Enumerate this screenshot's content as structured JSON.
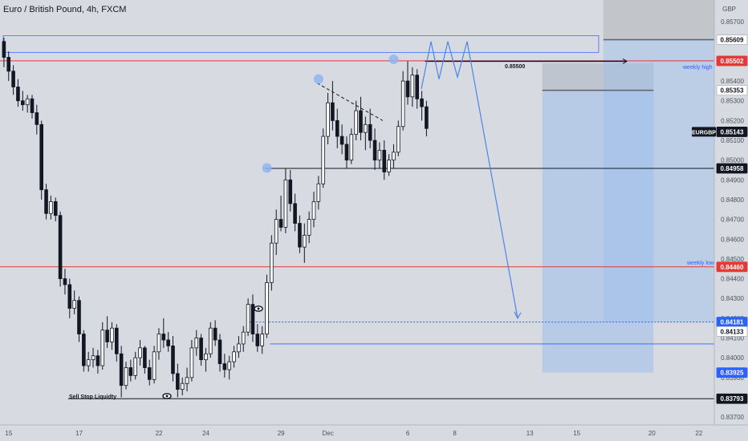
{
  "symbol_title": "Euro / British Pound, 4h, FXCM",
  "colors": {
    "background": "#d7dae1",
    "bull_candle": "#ffffff",
    "bear_candle": "#131722",
    "level_red": "#e53935",
    "level_black": "#131722",
    "level_blue": "#2962ff",
    "projection_line": "#4a86e8",
    "zone_blue": "#9cbfec",
    "zone_grey": "#c0c3c9",
    "marker": "#90b4ee"
  },
  "price_axis": {
    "currency": "GBP",
    "ticks": [
      "0.85700",
      "0.85600",
      "0.85400",
      "0.85300",
      "0.85200",
      "0.85100",
      "0.85000",
      "0.84900",
      "0.84800",
      "0.84700",
      "0.84600",
      "0.84500",
      "0.84400",
      "0.84300",
      "0.84200",
      "0.84100",
      "0.84000",
      "0.83900",
      "0.83700"
    ],
    "tick_values": [
      0.857,
      0.856,
      0.854,
      0.853,
      0.852,
      0.851,
      0.85,
      0.849,
      0.848,
      0.847,
      0.846,
      0.845,
      0.844,
      0.843,
      0.842,
      0.841,
      0.84,
      0.839,
      0.837
    ]
  },
  "price_badges": [
    {
      "label": "0.85609",
      "value": 0.85609,
      "style": "grey"
    },
    {
      "label": "0.85502",
      "value": 0.85502,
      "style": "red"
    },
    {
      "label": "0.85353",
      "value": 0.85353,
      "style": "grey"
    },
    {
      "label": "0.85143",
      "value": 0.85143,
      "style": "black",
      "prefix": "EURGBP"
    },
    {
      "label": "0.84958",
      "value": 0.84958,
      "style": "black"
    },
    {
      "label": "0.84460",
      "value": 0.8446,
      "style": "red"
    },
    {
      "label": "0.84181",
      "value": 0.84181,
      "style": "blue"
    },
    {
      "label": "0.84133",
      "value": 0.84133,
      "style": "grey"
    },
    {
      "label": "0.83925",
      "value": 0.83925,
      "style": "blue"
    },
    {
      "label": "0.83793",
      "value": 0.83793,
      "style": "black"
    }
  ],
  "time_axis": {
    "labels": [
      "15",
      "17",
      "22",
      "24",
      "29",
      "Dec",
      "6",
      "8",
      "13",
      "15",
      "20",
      "22"
    ],
    "label_slots": [
      1,
      16,
      33,
      43,
      59,
      69,
      86,
      96,
      112,
      122,
      138,
      148
    ]
  },
  "annotations": {
    "weekly_high": "weekly high",
    "weekly_low": "weekly low",
    "sell_stop": "Sell Stop Liquidty",
    "target_price": "0.85500",
    "symbol_tag": "EURGBP"
  },
  "chart_data": {
    "type": "candlestick",
    "timeframe": "4h",
    "symbol": "EURGBP",
    "title": "Euro / British Pound, 4h, FXCM",
    "ylim": [
      0.8366,
      0.8581
    ],
    "levels": [
      {
        "name": "weekly high",
        "value": 0.85502
      },
      {
        "name": "weekly low",
        "value": 0.8446
      },
      {
        "name": "level",
        "value": 0.84958
      },
      {
        "name": "sell stop liquidity",
        "value": 0.83793
      },
      {
        "name": "target",
        "value": 0.855
      }
    ],
    "ohlc": [
      [
        0.856,
        0.8562,
        0.8547,
        0.8552
      ],
      [
        0.8552,
        0.8555,
        0.854,
        0.8545
      ],
      [
        0.8545,
        0.8548,
        0.8533,
        0.8537
      ],
      [
        0.8537,
        0.8541,
        0.8527,
        0.853
      ],
      [
        0.853,
        0.8535,
        0.8525,
        0.8528
      ],
      [
        0.8528,
        0.8533,
        0.8524,
        0.8531
      ],
      [
        0.8531,
        0.8533,
        0.8521,
        0.8524
      ],
      [
        0.8524,
        0.8528,
        0.8513,
        0.8518
      ],
      [
        0.8518,
        0.852,
        0.848,
        0.8485
      ],
      [
        0.8485,
        0.8488,
        0.847,
        0.8473
      ],
      [
        0.8473,
        0.8482,
        0.847,
        0.8479
      ],
      [
        0.8479,
        0.8481,
        0.8469,
        0.8472
      ],
      [
        0.8472,
        0.8474,
        0.8436,
        0.844
      ],
      [
        0.844,
        0.8445,
        0.8432,
        0.8437
      ],
      [
        0.8437,
        0.844,
        0.842,
        0.8425
      ],
      [
        0.8425,
        0.8434,
        0.8422,
        0.8429
      ],
      [
        0.8429,
        0.8431,
        0.8408,
        0.8412
      ],
      [
        0.8412,
        0.8414,
        0.8393,
        0.8396
      ],
      [
        0.8396,
        0.8403,
        0.8393,
        0.8399
      ],
      [
        0.8399,
        0.8405,
        0.8395,
        0.8401
      ],
      [
        0.8401,
        0.8404,
        0.8392,
        0.8396
      ],
      [
        0.8396,
        0.8418,
        0.8394,
        0.8414
      ],
      [
        0.8414,
        0.8421,
        0.8405,
        0.8408
      ],
      [
        0.8408,
        0.8418,
        0.8404,
        0.8415
      ],
      [
        0.8415,
        0.8417,
        0.8398,
        0.8402
      ],
      [
        0.8402,
        0.8406,
        0.838,
        0.8386
      ],
      [
        0.8386,
        0.8398,
        0.8384,
        0.8395
      ],
      [
        0.8395,
        0.8399,
        0.8388,
        0.8391
      ],
      [
        0.8391,
        0.8403,
        0.8389,
        0.84
      ],
      [
        0.84,
        0.8409,
        0.8396,
        0.8405
      ],
      [
        0.8405,
        0.8406,
        0.8392,
        0.8395
      ],
      [
        0.8395,
        0.8399,
        0.8386,
        0.8389
      ],
      [
        0.8389,
        0.8406,
        0.8387,
        0.8403
      ],
      [
        0.8403,
        0.8415,
        0.8399,
        0.8412
      ],
      [
        0.8412,
        0.842,
        0.8405,
        0.8409
      ],
      [
        0.8409,
        0.8413,
        0.8403,
        0.8406
      ],
      [
        0.8406,
        0.8411,
        0.8388,
        0.8392
      ],
      [
        0.8392,
        0.8397,
        0.838,
        0.8384
      ],
      [
        0.8384,
        0.839,
        0.8381,
        0.8387
      ],
      [
        0.8387,
        0.8395,
        0.8383,
        0.839
      ],
      [
        0.839,
        0.8409,
        0.8388,
        0.8405
      ],
      [
        0.8405,
        0.8414,
        0.8401,
        0.841
      ],
      [
        0.841,
        0.8412,
        0.8396,
        0.8399
      ],
      [
        0.8399,
        0.8405,
        0.8393,
        0.8402
      ],
      [
        0.8402,
        0.8418,
        0.84,
        0.8415
      ],
      [
        0.8415,
        0.8419,
        0.8406,
        0.8409
      ],
      [
        0.8409,
        0.8412,
        0.8393,
        0.8397
      ],
      [
        0.8397,
        0.8402,
        0.839,
        0.8394
      ],
      [
        0.8394,
        0.8401,
        0.8389,
        0.8398
      ],
      [
        0.8398,
        0.8406,
        0.8395,
        0.8403
      ],
      [
        0.8403,
        0.8411,
        0.84,
        0.8407
      ],
      [
        0.8407,
        0.8416,
        0.8403,
        0.8413
      ],
      [
        0.8413,
        0.843,
        0.8411,
        0.8427
      ],
      [
        0.8427,
        0.8432,
        0.8408,
        0.8412
      ],
      [
        0.8412,
        0.8417,
        0.8403,
        0.8406
      ],
      [
        0.8406,
        0.8416,
        0.8402,
        0.8412
      ],
      [
        0.8412,
        0.8442,
        0.841,
        0.8438
      ],
      [
        0.8438,
        0.8462,
        0.8434,
        0.8458
      ],
      [
        0.8458,
        0.8475,
        0.8452,
        0.847
      ],
      [
        0.847,
        0.8482,
        0.8464,
        0.8466
      ],
      [
        0.8466,
        0.8496,
        0.8463,
        0.849
      ],
      [
        0.849,
        0.8495,
        0.8474,
        0.8478
      ],
      [
        0.8478,
        0.8483,
        0.8464,
        0.8468
      ],
      [
        0.8468,
        0.8472,
        0.8453,
        0.8456
      ],
      [
        0.8456,
        0.8468,
        0.8448,
        0.8462
      ],
      [
        0.8462,
        0.8474,
        0.8458,
        0.847
      ],
      [
        0.847,
        0.8484,
        0.8466,
        0.8479
      ],
      [
        0.8479,
        0.8492,
        0.8475,
        0.8488
      ],
      [
        0.8488,
        0.8516,
        0.8486,
        0.8512
      ],
      [
        0.8512,
        0.8534,
        0.8508,
        0.8529
      ],
      [
        0.8529,
        0.854,
        0.8515,
        0.852
      ],
      [
        0.852,
        0.8526,
        0.8506,
        0.8512
      ],
      [
        0.8512,
        0.8518,
        0.8503,
        0.8508
      ],
      [
        0.8508,
        0.8512,
        0.8496,
        0.85
      ],
      [
        0.85,
        0.8516,
        0.8498,
        0.8513
      ],
      [
        0.8513,
        0.853,
        0.851,
        0.8525
      ],
      [
        0.8525,
        0.8532,
        0.851,
        0.8514
      ],
      [
        0.8514,
        0.8522,
        0.8505,
        0.8518
      ],
      [
        0.8518,
        0.8526,
        0.8506,
        0.851
      ],
      [
        0.851,
        0.8516,
        0.8495,
        0.85
      ],
      [
        0.85,
        0.8509,
        0.8496,
        0.8505
      ],
      [
        0.8505,
        0.851,
        0.849,
        0.8494
      ],
      [
        0.8494,
        0.8503,
        0.8492,
        0.85
      ],
      [
        0.85,
        0.8508,
        0.8496,
        0.8504
      ],
      [
        0.8504,
        0.852,
        0.8502,
        0.8517
      ],
      [
        0.8517,
        0.8545,
        0.8515,
        0.854
      ],
      [
        0.854,
        0.855,
        0.8528,
        0.8532
      ],
      [
        0.8532,
        0.8547,
        0.8527,
        0.8543
      ],
      [
        0.8543,
        0.8546,
        0.8526,
        0.8531
      ],
      [
        0.8531,
        0.8535,
        0.852,
        0.8527
      ],
      [
        0.8527,
        0.853,
        0.8512,
        0.8516
      ]
    ],
    "projection_path": [
      [
        0.8536,
        false
      ],
      [
        0.856,
        false
      ],
      [
        0.8541,
        false
      ],
      [
        0.856,
        false
      ],
      [
        0.8542,
        false
      ],
      [
        0.856,
        false
      ],
      [
        0.842,
        true
      ]
    ]
  }
}
